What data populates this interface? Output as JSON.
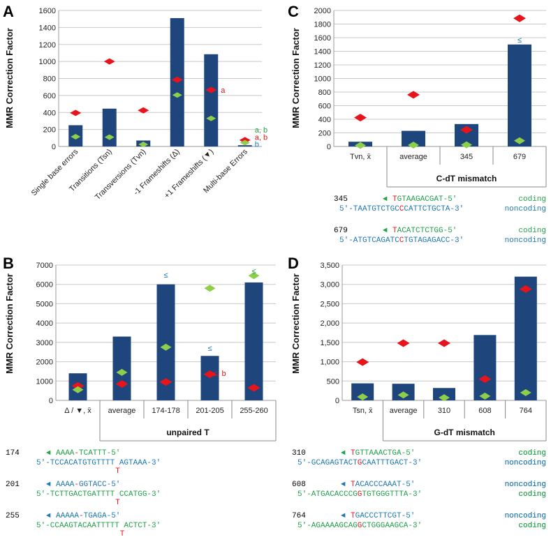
{
  "colors": {
    "bar": "#1f467c",
    "red": "#e8141c",
    "green": "#8fce4a",
    "blue_text": "#1f78b4",
    "green_text": "#22a24a",
    "grid": "#c8c8c8"
  },
  "chart_data": [
    {
      "panel": "A",
      "type": "bar",
      "ylabel": "MMR Correction Factor",
      "ylim": [
        0,
        1600
      ],
      "yticks": [
        "0",
        "200",
        "400",
        "600",
        "800",
        "1000",
        "1200",
        "1400",
        "1600"
      ],
      "categories": [
        "Single base errors",
        "Transitions (Tsn)",
        "Transversions (Tvn)",
        "-1 Frameshifts (Δ)",
        "+1 Frameshifts (▼)",
        "Multi-base Errors"
      ],
      "bars": [
        250,
        445,
        70,
        1510,
        1085,
        15
      ],
      "red": [
        395,
        1000,
        425,
        785,
        665,
        75
      ],
      "green": [
        115,
        110,
        25,
        605,
        330,
        45
      ],
      "annotations": [
        {
          "index": 4,
          "text": "a",
          "color": "red",
          "y": 665
        },
        {
          "index": 5,
          "text": "a, b",
          "color": "green",
          "y": 195
        },
        {
          "index": 5,
          "text": "a, b",
          "color": "red",
          "y": 110
        },
        {
          "index": 5,
          "text": "b",
          "color": "blue",
          "y": 30
        }
      ]
    },
    {
      "panel": "B",
      "type": "bar",
      "ylabel": "MMR Correction Factor",
      "ylim": [
        0,
        7000
      ],
      "yticks": [
        "0",
        "1000",
        "2000",
        "3000",
        "4000",
        "5000",
        "6000",
        "7000"
      ],
      "categories": [
        "Δ / ▼, x̄",
        "average",
        "174-178",
        "201-205",
        "255-260"
      ],
      "group_title": "unpaired T",
      "bars": [
        1400,
        3300,
        6000,
        2300,
        6100
      ],
      "red": [
        750,
        850,
        950,
        1350,
        650
      ],
      "green": [
        550,
        1450,
        2750,
        5800,
        6450
      ],
      "annotations": [
        {
          "index": 2,
          "text": "≤",
          "color": "blue",
          "y": 6500
        },
        {
          "index": 3,
          "text": "≤",
          "color": "blue",
          "y": 2700
        },
        {
          "index": 3,
          "text": "≤, b",
          "color": "red",
          "y": 1400
        },
        {
          "index": 4,
          "text": "≤",
          "color": "green",
          "y": 6700
        }
      ]
    },
    {
      "panel": "C",
      "type": "bar",
      "ylabel": "MMR Correction Factor",
      "ylim": [
        0,
        2000
      ],
      "yticks": [
        "0",
        "200",
        "400",
        "600",
        "800",
        "1000",
        "1200",
        "1400",
        "1600",
        "1800",
        "2000"
      ],
      "categories": [
        "Tvn, x̄",
        "average",
        "345",
        "679"
      ],
      "group_title": "C-dT mismatch",
      "bars": [
        70,
        230,
        330,
        1500
      ],
      "red": [
        425,
        760,
        245,
        1885
      ],
      "green": [
        15,
        20,
        25,
        85
      ],
      "annotations": [
        {
          "index": 3,
          "text": "≤",
          "color": "blue",
          "y": 1570
        }
      ]
    },
    {
      "panel": "D",
      "type": "bar",
      "ylabel": "MMR Correction Factor",
      "ylim": [
        0,
        3500
      ],
      "yticks": [
        "0",
        "500",
        "1,000",
        "1,500",
        "2,000",
        "2,500",
        "3,000",
        "3,500"
      ],
      "categories": [
        "Tsn, x̄",
        "average",
        "310",
        "608",
        "764"
      ],
      "group_title": "G-dT mismatch",
      "bars": [
        440,
        430,
        320,
        1690,
        3200
      ],
      "red": [
        990,
        1480,
        1480,
        550,
        2880
      ],
      "green": [
        90,
        140,
        70,
        110,
        200
      ]
    }
  ],
  "sequences": {
    "B": [
      {
        "num": "174",
        "arrow": "◄",
        "arrow_color": "green",
        "top": [
          [
            "AAAA",
            "green"
          ],
          [
            "-",
            "red"
          ],
          [
            "TCATTT-5'",
            "green"
          ]
        ],
        "top_label": "coding",
        "top_label_color": "green",
        "bottom": [
          [
            "5'-TCCACATGTGTTTT AGTAAA-3'",
            "blue"
          ]
        ],
        "bottom_label": "noncoding",
        "bottom_label_color": "blue",
        "insert": "T"
      },
      {
        "num": "201",
        "arrow": "◄",
        "arrow_color": "blue",
        "top": [
          [
            "AAAA",
            "blue"
          ],
          [
            "-",
            "red"
          ],
          [
            "GGTACC-5'",
            "blue"
          ]
        ],
        "top_label": "noncoding",
        "top_label_color": "blue",
        "bottom": [
          [
            "5'-TCTTGACTGATTTT CCATGG-3'",
            "green"
          ]
        ],
        "bottom_label": "coding",
        "bottom_label_color": "green",
        "insert": "T"
      },
      {
        "num": "255",
        "arrow": "◄",
        "arrow_color": "blue",
        "top": [
          [
            "AAAAA",
            "blue"
          ],
          [
            "-",
            "red"
          ],
          [
            "TGAGA-5'",
            "blue"
          ]
        ],
        "top_label": "noncoding",
        "top_label_color": "blue",
        "bottom": [
          [
            "5'-CCAAGTACAATTTTT ACTCT-3'",
            "green"
          ]
        ],
        "bottom_label": "coding",
        "bottom_label_color": "green",
        "insert": "T"
      }
    ],
    "C": [
      {
        "num": "345",
        "arrow": "◄",
        "arrow_color": "green",
        "top": [
          [
            "T",
            "red"
          ],
          [
            "GTAAGACGAT-5'",
            "green"
          ]
        ],
        "top_label": "coding",
        "top_label_color": "green",
        "bottom": [
          [
            "5'-TAATGTCTGC",
            "blue"
          ],
          [
            "C",
            "red"
          ],
          [
            "CATTCTGCTA-3'",
            "blue"
          ]
        ],
        "bottom_label": "noncoding",
        "bottom_label_color": "blue"
      },
      {
        "num": "679",
        "arrow": "◄",
        "arrow_color": "green",
        "top": [
          [
            "T",
            "red"
          ],
          [
            "ACATCTCTGG-5'",
            "green"
          ]
        ],
        "top_label": "coding",
        "top_label_color": "green",
        "bottom": [
          [
            "5'-ATGTCAGATC",
            "blue"
          ],
          [
            "C",
            "red"
          ],
          [
            "TGTAGAGACC-3'",
            "blue"
          ]
        ],
        "bottom_label": "noncoding",
        "bottom_label_color": "blue"
      }
    ],
    "D": [
      {
        "num": "310",
        "arrow": "◄",
        "arrow_color": "green",
        "top": [
          [
            "T",
            "red"
          ],
          [
            "GTTAAACTGA-5'",
            "green"
          ]
        ],
        "top_label": "coding",
        "top_label_color": "green",
        "bottom": [
          [
            "5'-GCAGAGTACT",
            "blue"
          ],
          [
            "G",
            "red"
          ],
          [
            "CAATTTGACT-3'",
            "blue"
          ]
        ],
        "bottom_label": "noncoding",
        "bottom_label_color": "blue"
      },
      {
        "num": "608",
        "arrow": "◄",
        "arrow_color": "blue",
        "top": [
          [
            "T",
            "red"
          ],
          [
            "ACACCCAAAT-5'",
            "blue"
          ]
        ],
        "top_label": "noncoding",
        "top_label_color": "blue",
        "bottom": [
          [
            "5'-ATGACACCCG",
            "green"
          ],
          [
            "G",
            "red"
          ],
          [
            "TGTGGGTTTA-3'",
            "green"
          ]
        ],
        "bottom_label": "coding",
        "bottom_label_color": "green"
      },
      {
        "num": "764",
        "arrow": "◄",
        "arrow_color": "blue",
        "top": [
          [
            "T",
            "red"
          ],
          [
            "GACCCTTCGT-5'",
            "blue"
          ]
        ],
        "top_label": "noncoding",
        "top_label_color": "blue",
        "bottom": [
          [
            "5'-AGAAAAGCAG",
            "green"
          ],
          [
            "G",
            "red"
          ],
          [
            "CTGGGAAGCA-3'",
            "green"
          ]
        ],
        "bottom_label": "coding",
        "bottom_label_color": "green"
      }
    ]
  }
}
